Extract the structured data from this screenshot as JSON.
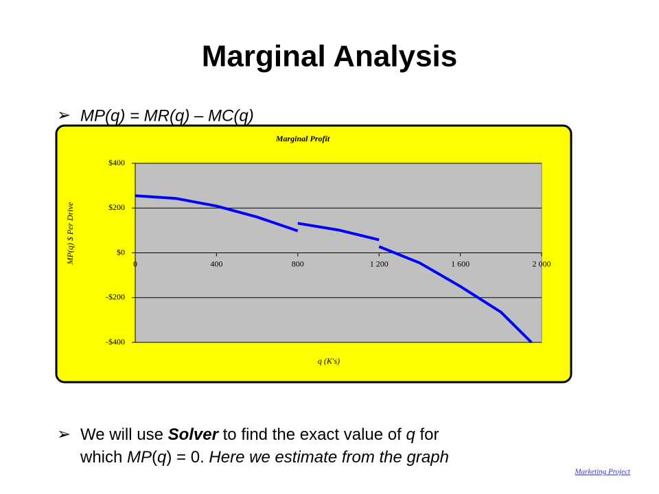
{
  "slide": {
    "title": "Marginal Analysis",
    "bullet_1": "MP(q) = MR(q) – MC(q)",
    "bullet_2": {
      "line_1": [
        "We will use ",
        "Solver",
        " to find the exact value of ",
        "q",
        " for"
      ],
      "line_2": [
        "which ",
        "MP",
        "(",
        "q",
        ") = 0. ",
        "Here we estimate from the graph"
      ]
    },
    "link": "Marketing Project"
  },
  "chart_data": {
    "type": "line",
    "title": "Marginal Profit",
    "x_label": "q (K's)",
    "y_label": "MP(q) $ Per Drive",
    "x": [
      0,
      200,
      400,
      600,
      800,
      null,
      800,
      1000,
      1200,
      null,
      1200,
      1400,
      1600,
      1800,
      1950
    ],
    "series": [
      {
        "name": "Marginal Profit",
        "color": "#0000ff",
        "values": [
          255,
          243,
          209,
          160,
          98,
          null,
          132,
          102,
          58,
          null,
          28,
          -45,
          -150,
          -265,
          -400
        ]
      }
    ],
    "xlim": [
      0,
      2000
    ],
    "xticks": [
      0,
      400,
      800,
      {
        "value": 1200,
        "label": "1 200"
      },
      {
        "value": 1600,
        "label": "1 600"
      },
      {
        "value": 2000,
        "label": "2 000"
      }
    ],
    "ylim": [
      -400,
      400
    ],
    "yticks": [
      {
        "value": -400,
        "label": "-$400"
      },
      {
        "value": -200,
        "label": "-$200"
      },
      {
        "value": 0,
        "label": "$0"
      },
      {
        "value": 200,
        "label": "$200"
      },
      {
        "value": 400,
        "label": "$400"
      }
    ],
    "grid": true,
    "plot_color": "#c0c0c0",
    "panel_color": "#ffff00"
  }
}
